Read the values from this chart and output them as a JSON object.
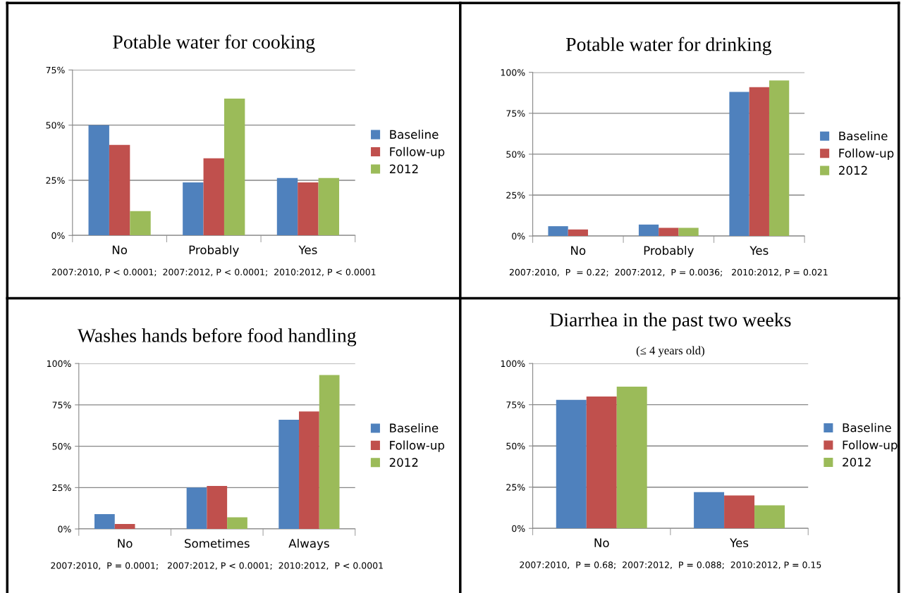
{
  "chart_data": [
    {
      "type": "bar",
      "title": "Potable water for cooking",
      "categories": [
        "No",
        "Probably",
        "Yes"
      ],
      "series": [
        {
          "name": "Baseline",
          "color": "#4f81bd",
          "values": [
            50,
            24,
            26
          ]
        },
        {
          "name": "Follow-up",
          "color": "#c0504d",
          "values": [
            41,
            35,
            24
          ]
        },
        {
          "name": "2012",
          "color": "#9bbb59",
          "values": [
            11,
            62,
            26
          ]
        }
      ],
      "ylim": [
        0,
        75
      ],
      "yticks": [
        {
          "value": 0,
          "label": "0%"
        },
        {
          "value": 25,
          "label": "25%"
        },
        {
          "value": 50,
          "label": "50%"
        },
        {
          "value": 75,
          "label": "75%"
        }
      ],
      "grid": "y",
      "legend": "right",
      "annotations": [
        "2007:2010, P < 0.0001;  2007:2012, P < 0.0001;  2010:2012, P < 0.0001"
      ]
    },
    {
      "type": "bar",
      "title": "Potable water for drinking",
      "categories": [
        "No",
        "Probably",
        "Yes"
      ],
      "series": [
        {
          "name": "Baseline",
          "color": "#4f81bd",
          "values": [
            6,
            7,
            88
          ]
        },
        {
          "name": "Follow-up",
          "color": "#c0504d",
          "values": [
            4,
            5,
            91
          ]
        },
        {
          "name": "2012",
          "color": "#9bbb59",
          "values": [
            0,
            5,
            95
          ]
        }
      ],
      "ylim": [
        0,
        100
      ],
      "yticks": [
        {
          "value": 0,
          "label": "0%"
        },
        {
          "value": 25,
          "label": "25%"
        },
        {
          "value": 50,
          "label": "50%"
        },
        {
          "value": 75,
          "label": "75%"
        },
        {
          "value": 100,
          "label": "100%"
        }
      ],
      "grid": "y",
      "legend": "right",
      "annotations": [
        "2007:2010,  P  = 0.22;  2007:2012,  P = 0.0036;   2010:2012, P = 0.021"
      ]
    },
    {
      "type": "bar",
      "title": "Washes hands before food handling",
      "categories": [
        "No",
        "Sometimes",
        "Always"
      ],
      "series": [
        {
          "name": "Baseline",
          "color": "#4f81bd",
          "values": [
            9,
            25,
            66
          ]
        },
        {
          "name": "Follow-up",
          "color": "#c0504d",
          "values": [
            3,
            26,
            71
          ]
        },
        {
          "name": "2012",
          "color": "#9bbb59",
          "values": [
            0,
            7,
            93
          ]
        }
      ],
      "ylim": [
        0,
        100
      ],
      "yticks": [
        {
          "value": 0,
          "label": "0%"
        },
        {
          "value": 25,
          "label": "25%"
        },
        {
          "value": 50,
          "label": "50%"
        },
        {
          "value": 75,
          "label": "75%"
        },
        {
          "value": 100,
          "label": "100%"
        }
      ],
      "grid": "y",
      "legend": "right",
      "annotations": [
        "2007:2010,  P = 0.0001;   2007:2012, P < 0.0001;  2010:2012,  P < 0.0001"
      ]
    },
    {
      "type": "bar",
      "title": "Diarrhea in the past two weeks",
      "subtitle": "(≤ 4 years old)",
      "categories": [
        "No",
        "Yes"
      ],
      "series": [
        {
          "name": "Baseline",
          "color": "#4f81bd",
          "values": [
            78,
            22
          ]
        },
        {
          "name": "Follow-up",
          "color": "#c0504d",
          "values": [
            80,
            20
          ]
        },
        {
          "name": "2012",
          "color": "#9bbb59",
          "values": [
            86,
            14
          ]
        }
      ],
      "ylim": [
        0,
        100
      ],
      "yticks": [
        {
          "value": 0,
          "label": "0%"
        },
        {
          "value": 25,
          "label": "25%"
        },
        {
          "value": 50,
          "label": "50%"
        },
        {
          "value": 75,
          "label": "75%"
        },
        {
          "value": 100,
          "label": "100%"
        }
      ],
      "grid": "y",
      "legend": "right",
      "annotations": [
        "2007:2010,  P = 0.68;  2007:2012,  P = 0.088;  2010:2012, P = 0.15"
      ]
    }
  ]
}
